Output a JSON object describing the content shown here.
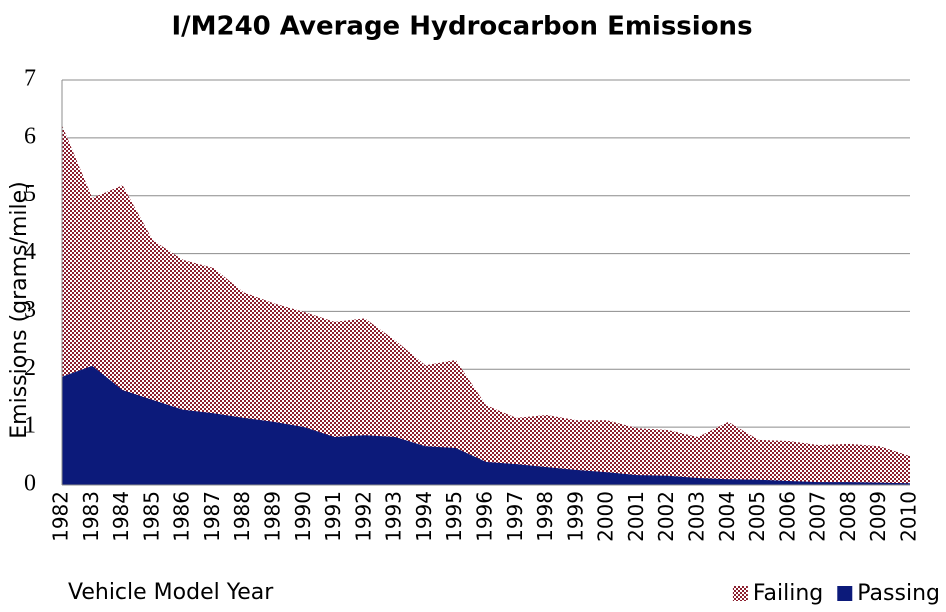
{
  "chart_data": {
    "type": "area",
    "title": "I/M240 Average Hydrocarbon Emissions",
    "x_label": "Vehicle Model Year",
    "y_label": "Emissions (grams/mile)",
    "categories": [
      "1982",
      "1983",
      "1984",
      "1985",
      "1986",
      "1987",
      "1988",
      "1989",
      "1990",
      "1991",
      "1992",
      "1993",
      "1994",
      "1995",
      "1996",
      "1997",
      "1998",
      "1999",
      "2000",
      "2001",
      "2002",
      "2003",
      "2004",
      "2005",
      "2006",
      "2007",
      "2008",
      "2009",
      "2010"
    ],
    "series": [
      {
        "name": "Failing",
        "color": "#8b1f2e",
        "values": [
          6.22,
          4.96,
          5.18,
          4.23,
          3.89,
          3.75,
          3.33,
          3.14,
          2.99,
          2.82,
          2.88,
          2.5,
          2.07,
          2.16,
          1.38,
          1.16,
          1.21,
          1.12,
          1.12,
          0.98,
          0.95,
          0.83,
          1.09,
          0.78,
          0.76,
          0.69,
          0.71,
          0.67,
          0.5
        ]
      },
      {
        "name": "Passing",
        "color": "#0c1a7a",
        "values": [
          1.87,
          2.06,
          1.64,
          1.47,
          1.3,
          1.24,
          1.16,
          1.09,
          1.0,
          0.83,
          0.86,
          0.83,
          0.67,
          0.64,
          0.4,
          0.36,
          0.31,
          0.26,
          0.22,
          0.17,
          0.16,
          0.12,
          0.1,
          0.09,
          0.07,
          0.05,
          0.05,
          0.04,
          0.03
        ]
      }
    ],
    "ylim": [
      0,
      7
    ],
    "yticks": [
      0,
      1,
      2,
      3,
      4,
      5,
      6,
      7
    ],
    "grid": true,
    "legend": "bottom-right"
  }
}
